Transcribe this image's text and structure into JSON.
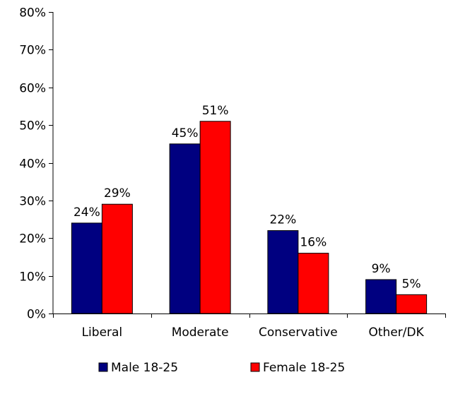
{
  "chart_data": {
    "type": "bar",
    "title": "",
    "xlabel": "",
    "ylabel": "",
    "categories": [
      "Liberal",
      "Moderate",
      "Conservative",
      "Other/DK"
    ],
    "series": [
      {
        "name": "Male 18-25",
        "color": "#000080",
        "values": [
          24,
          45,
          22,
          9
        ],
        "labels": [
          "24%",
          "45%",
          "22%",
          "9%"
        ]
      },
      {
        "name": "Female 18-25",
        "color": "#FF0000",
        "values": [
          29,
          51,
          16,
          5
        ],
        "labels": [
          "29%",
          "51%",
          "16%",
          "5%"
        ]
      }
    ],
    "ylim": [
      0,
      80
    ],
    "yticks": [
      0,
      10,
      20,
      30,
      40,
      50,
      60,
      70,
      80
    ],
    "ytick_labels": [
      "0%",
      "10%",
      "20%",
      "30%",
      "40%",
      "50%",
      "60%",
      "70%",
      "80%"
    ],
    "grid": false,
    "legend": "bottom"
  }
}
